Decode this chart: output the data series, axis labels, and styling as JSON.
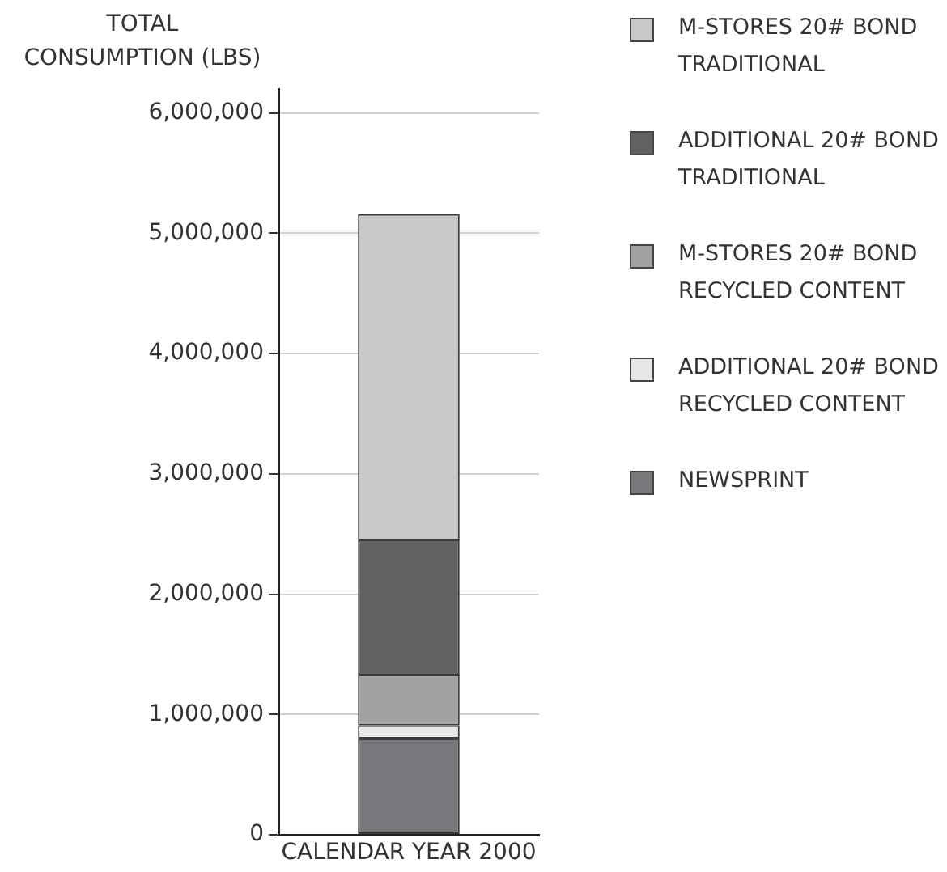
{
  "chart_data": {
    "type": "bar",
    "ylabel": "TOTAL CONSUMPTION (LBS)",
    "categories": [
      "CALENDAR YEAR 2000"
    ],
    "stacked": true,
    "series": [
      {
        "name": "NEWSPRINT",
        "color": "#77787b",
        "values": [
          800000
        ]
      },
      {
        "name": "ADDITIONAL 20# BOND RECYCLED CONTENT",
        "color": "#e6e7e8",
        "values": [
          110000
        ]
      },
      {
        "name": "M-STORES 20# BOND RECYCLED CONTENT",
        "color": "#a0a1a3",
        "values": [
          420000
        ]
      },
      {
        "name": "ADDITIONAL 20# BOND TRADITIONAL",
        "color": "#606163",
        "values": [
          1120000
        ]
      },
      {
        "name": "M-STORES 20# BOND TRADITIONAL",
        "color": "#c8c9cb",
        "values": [
          2710000
        ]
      }
    ],
    "ylim": [
      0,
      6200000
    ],
    "yticks": [
      0,
      {
        "value": 1000000,
        "label": "1,000,000"
      },
      {
        "value": 2000000,
        "label": "2,000,000"
      },
      {
        "value": 3000000,
        "label": "3,000,000"
      },
      {
        "value": 4000000,
        "label": "4,000,000"
      },
      {
        "value": 5000000,
        "label": "5,000,000"
      },
      {
        "value": 6000000,
        "label": "6,000,000"
      }
    ],
    "grid": "y",
    "legend": "top right"
  }
}
